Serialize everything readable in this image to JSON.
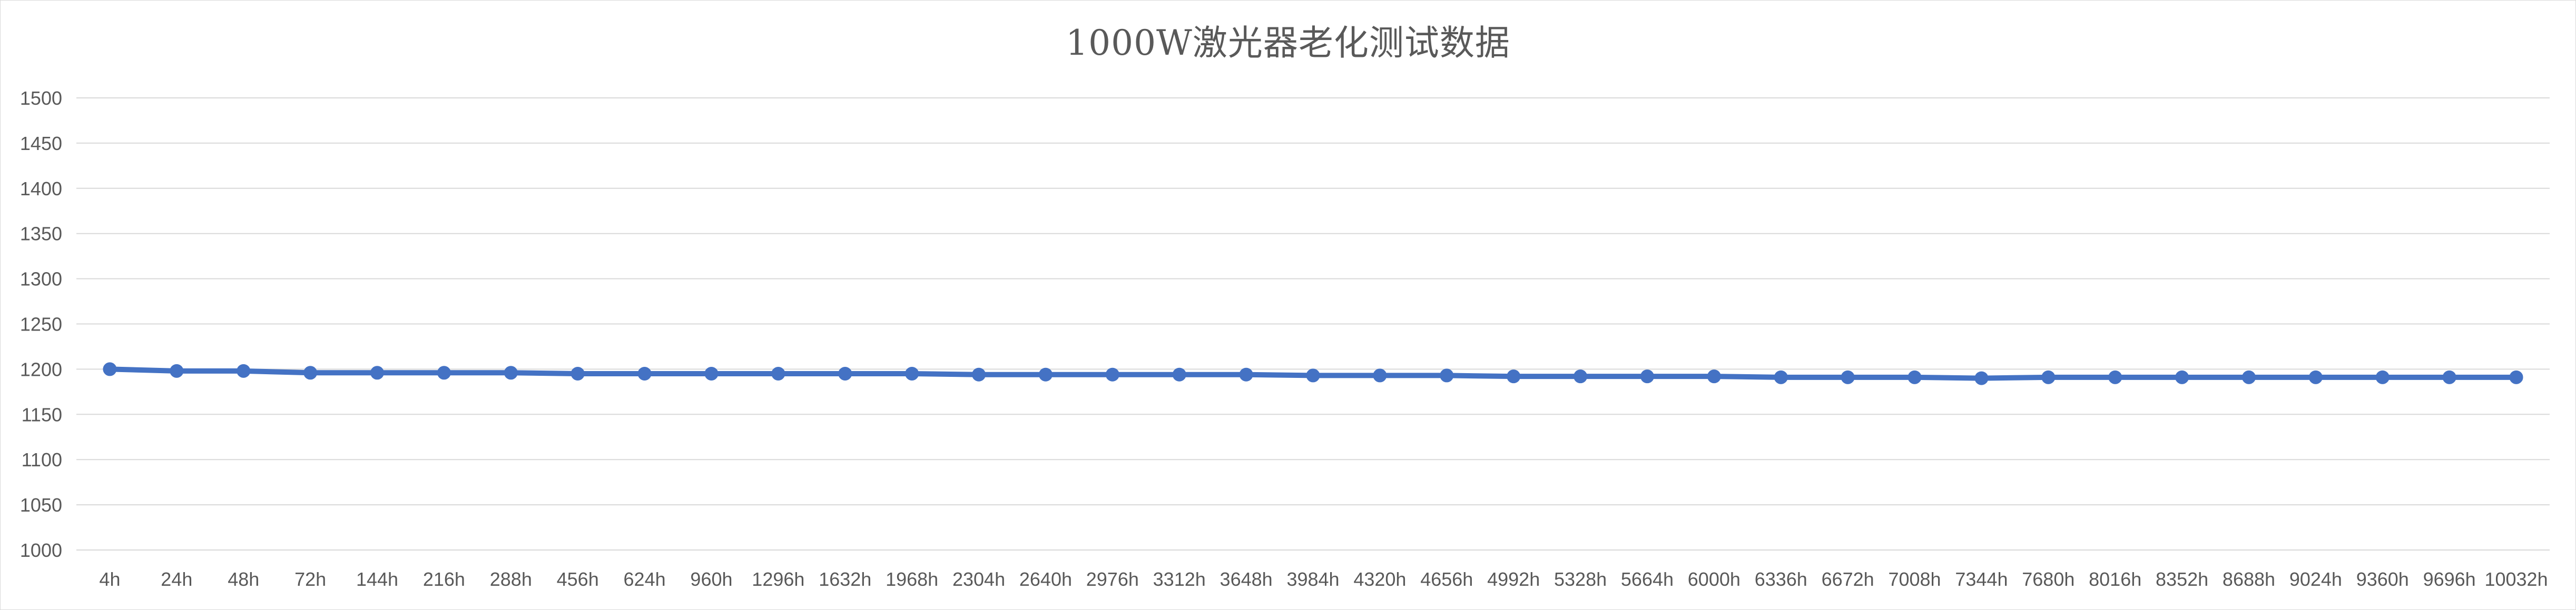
{
  "chart_data": {
    "type": "line",
    "title": "1000W激光器老化测试数据",
    "xlabel": "",
    "ylabel": "",
    "ylim": [
      1000,
      1500
    ],
    "yticks": [
      1000,
      1050,
      1100,
      1150,
      1200,
      1250,
      1300,
      1350,
      1400,
      1450,
      1500
    ],
    "grid": true,
    "legend": "none",
    "series_color": "#4472c4",
    "categories": [
      "4h",
      "24h",
      "48h",
      "72h",
      "144h",
      "216h",
      "288h",
      "456h",
      "624h",
      "960h",
      "1296h",
      "1632h",
      "1968h",
      "2304h",
      "2640h",
      "2976h",
      "3312h",
      "3648h",
      "3984h",
      "4320h",
      "4656h",
      "4992h",
      "5328h",
      "5664h",
      "6000h",
      "6336h",
      "6672h",
      "7008h",
      "7344h",
      "7680h",
      "8016h",
      "8352h",
      "8688h",
      "9024h",
      "9360h",
      "9696h",
      "10032h"
    ],
    "series": [
      {
        "values": [
          1200,
          1198,
          1198,
          1196,
          1196,
          1196,
          1196,
          1195,
          1195,
          1195,
          1195,
          1195,
          1195,
          1194,
          1194,
          1194,
          1194,
          1194,
          1193,
          1193,
          1193,
          1192,
          1192,
          1192,
          1192,
          1191,
          1191,
          1191,
          1190,
          1191,
          1191,
          1191,
          1191,
          1191,
          1191,
          1191,
          1191
        ]
      }
    ]
  }
}
